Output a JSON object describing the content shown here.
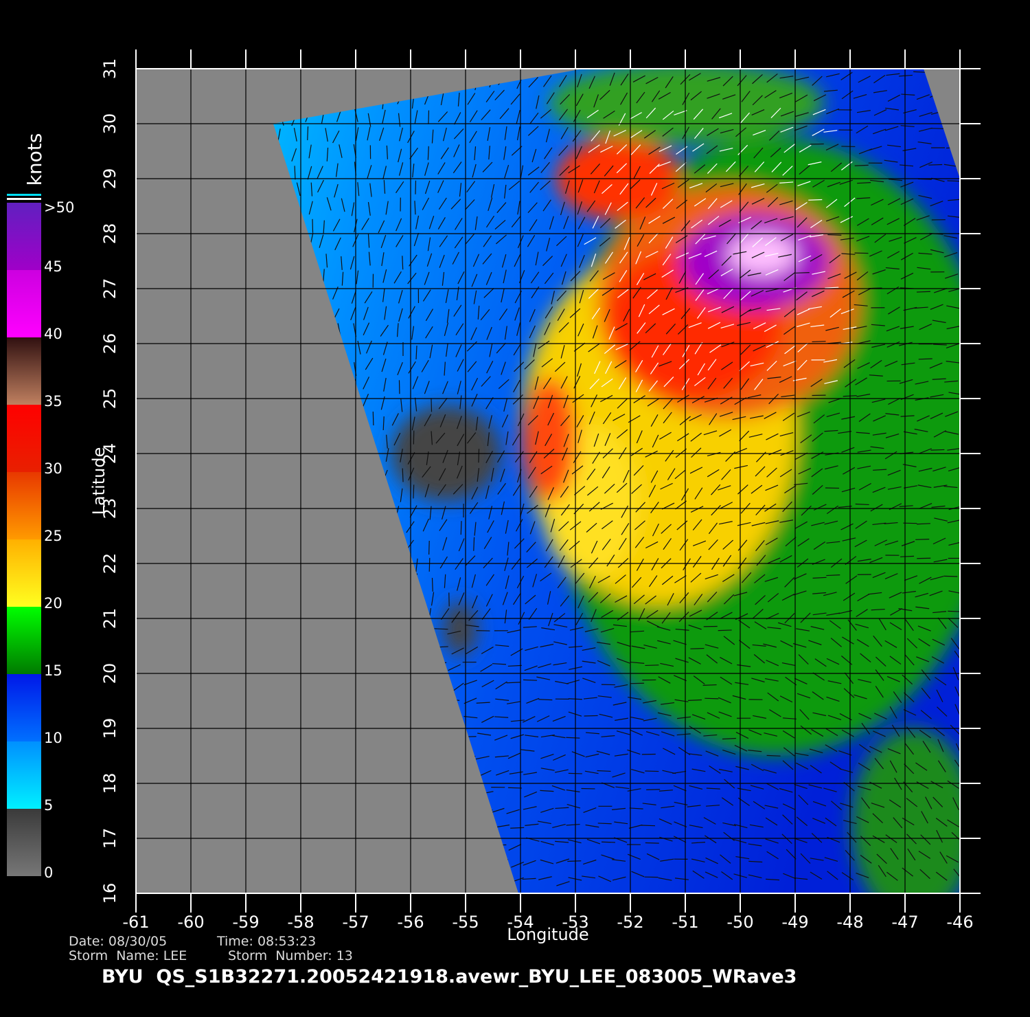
{
  "map": {
    "xlabel": "Longitude",
    "ylabel": "Latitude",
    "xlim": [
      -61,
      -46
    ],
    "ylim": [
      16,
      31
    ],
    "xticks": [
      -61,
      -60,
      -59,
      -58,
      -57,
      -56,
      -55,
      -54,
      -53,
      -52,
      -51,
      -50,
      -49,
      -48,
      -47,
      -46
    ],
    "yticks": [
      16,
      17,
      18,
      19,
      20,
      21,
      22,
      23,
      24,
      25,
      26,
      27,
      28,
      29,
      30,
      31
    ]
  },
  "colorbar": {
    "title": "knots",
    "lim": [
      0,
      50
    ],
    "ticks": [
      0,
      5,
      10,
      15,
      20,
      25,
      30,
      35,
      40,
      45,
      {
        "value": 50,
        "label": ">50"
      }
    ],
    "colors": [
      [
        "#777777",
        "#3a3a3a"
      ],
      [
        "#00f0ff",
        "#0090ff"
      ],
      [
        "#0070ff",
        "#0018e8"
      ],
      [
        "#007a00",
        "#00ff00"
      ],
      [
        "#ffff20",
        "#ffb000"
      ],
      [
        "#ff9a00",
        "#e83800"
      ],
      [
        "#e82000",
        "#ff0000"
      ],
      [
        "#c08060",
        "#301010"
      ],
      [
        "#ff00ff",
        "#cc00e0"
      ],
      [
        "#a000c8",
        "#6020c0"
      ]
    ]
  },
  "footer": {
    "date": "Date: 08/30/05",
    "time": "Time: 08:53:23",
    "storm_name": "Storm  Name: LEE",
    "storm_number": "Storm  Number: 13",
    "file": "BYU  QS_S1B32271.20052421918.avewr_BYU_LEE_083005_WRave3"
  }
}
